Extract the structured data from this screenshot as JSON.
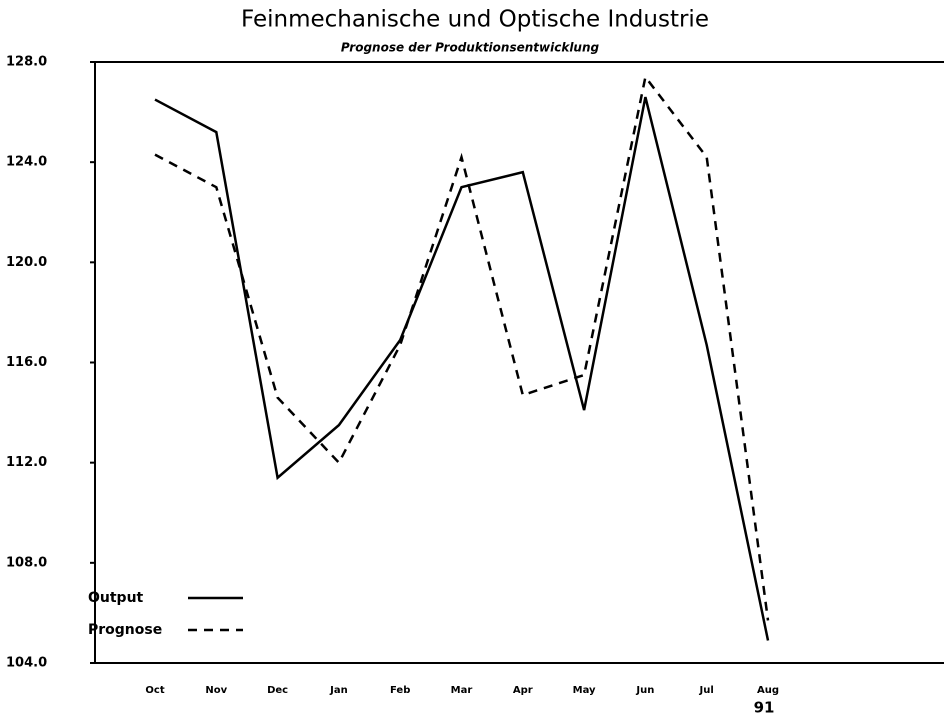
{
  "chart_data": {
    "type": "line",
    "title": "Feinmechanische und Optische Industrie",
    "subtitle": "Prognose der Produktionsentwicklung",
    "categories": [
      "Oct",
      "Nov",
      "Dec",
      "Jan",
      "Feb",
      "Mar",
      "Apr",
      "May",
      "Jun",
      "Jul",
      "Aug"
    ],
    "series": [
      {
        "name": "Output",
        "color": "#000000",
        "dash": "solid",
        "values": [
          126.5,
          125.2,
          111.4,
          113.5,
          116.9,
          123.0,
          123.6,
          114.1,
          126.6,
          116.7,
          104.9
        ]
      },
      {
        "name": "Prognose",
        "color": "#000000",
        "dash": "dashed",
        "values": [
          124.3,
          123.0,
          114.6,
          112.0,
          116.7,
          124.2,
          114.7,
          115.5,
          127.4,
          124.2,
          105.7
        ]
      }
    ],
    "ylim": [
      104,
      128
    ],
    "yticks": [
      {
        "value": 104,
        "label": "104.0"
      },
      {
        "value": 108,
        "label": "108.0"
      },
      {
        "value": 112,
        "label": "112.0"
      },
      {
        "value": 116,
        "label": "116.0"
      },
      {
        "value": 120,
        "label": "120.0"
      },
      {
        "value": 124,
        "label": "124.0"
      },
      {
        "value": 128,
        "label": "128.0"
      }
    ],
    "annotations": [
      "91"
    ],
    "legend": "lower left",
    "grid": false
  }
}
